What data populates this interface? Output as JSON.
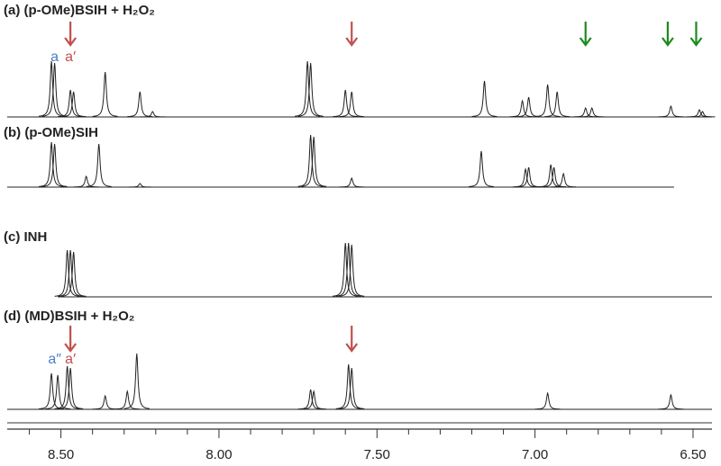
{
  "chart_data": {
    "type": "nmr",
    "xlim": [
      8.67,
      6.44
    ],
    "xticks": [
      {
        "value": 8.5,
        "label": "8.50"
      },
      {
        "value": 8.0,
        "label": "8.00"
      },
      {
        "value": 7.5,
        "label": "7.50"
      },
      {
        "value": 7.0,
        "label": "7.00"
      },
      {
        "value": 6.5,
        "label": "6.50"
      }
    ],
    "xminor": [
      8.6,
      8.4,
      8.3,
      8.2,
      8.1,
      7.9,
      7.8,
      7.7,
      7.6,
      7.4,
      7.3,
      7.2,
      7.1,
      6.9,
      6.8,
      6.7,
      6.6
    ],
    "color": "#222222",
    "series": [
      {
        "name": "(a) (p-OMe)BSIH + H₂O₂",
        "x": [
          8.53,
          8.52,
          8.47,
          8.46,
          8.36,
          8.25,
          8.21,
          7.72,
          7.71,
          7.6,
          7.58,
          7.16,
          7.04,
          7.02,
          6.96,
          6.93,
          6.84,
          6.82,
          6.57,
          6.48,
          6.47
        ],
        "values": [
          62,
          60,
          30,
          28,
          50,
          28,
          6,
          62,
          60,
          30,
          28,
          40,
          18,
          22,
          36,
          28,
          10,
          10,
          12,
          8,
          6
        ],
        "xrange": [
          8.67,
          6.44
        ],
        "arrows": [
          {
            "x": 8.47,
            "color": "#c0504d"
          },
          {
            "x": 7.58,
            "color": "#c0504d"
          },
          {
            "x": 6.84,
            "color": "#1e8a1e"
          },
          {
            "x": 6.58,
            "color": "#1e8a1e"
          },
          {
            "x": 6.49,
            "color": "#1e8a1e"
          }
        ],
        "labels": [
          {
            "text": "a",
            "x": 8.52,
            "color": "#4a7ec2"
          },
          {
            "text": "a′",
            "x": 8.47,
            "color": "#c0504d"
          }
        ]
      },
      {
        "name": "(b) (p-OMe)SIH",
        "x": [
          8.53,
          8.52,
          8.42,
          8.38,
          8.25,
          7.71,
          7.7,
          7.58,
          7.17,
          7.03,
          7.02,
          6.95,
          6.94,
          6.91
        ],
        "values": [
          50,
          48,
          12,
          48,
          4,
          58,
          56,
          10,
          40,
          20,
          22,
          25,
          22,
          15
        ],
        "xrange": [
          8.67,
          6.56
        ]
      },
      {
        "name": "(c) INH",
        "x": [
          8.48,
          8.47,
          8.46,
          7.6,
          7.59,
          7.58
        ],
        "values": [
          52,
          52,
          50,
          60,
          60,
          58
        ],
        "xrange": [
          8.51,
          6.44
        ]
      },
      {
        "name": "(d) (MD)BSIH + H₂O₂",
        "x": [
          8.53,
          8.51,
          8.48,
          8.47,
          8.36,
          8.29,
          8.26,
          7.71,
          7.7,
          7.59,
          7.58,
          6.96,
          6.57
        ],
        "values": [
          40,
          38,
          48,
          46,
          15,
          20,
          62,
          22,
          20,
          50,
          46,
          18,
          16
        ],
        "xrange": [
          8.67,
          6.44
        ],
        "arrows": [
          {
            "x": 8.47,
            "color": "#c0504d"
          },
          {
            "x": 7.58,
            "color": "#c0504d"
          }
        ],
        "labels": [
          {
            "text": "a″",
            "x": 8.52,
            "color": "#4a7ec2"
          },
          {
            "text": "a′",
            "x": 8.47,
            "color": "#c0504d"
          }
        ]
      }
    ]
  }
}
